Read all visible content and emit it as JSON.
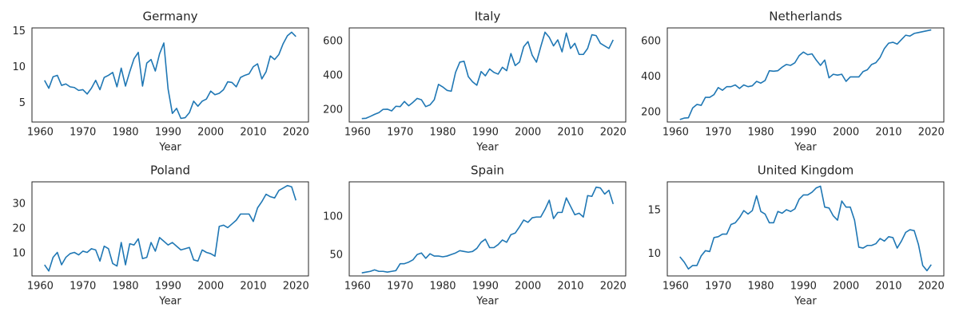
{
  "chart_data": [
    {
      "type": "line",
      "title": "Germany",
      "xlabel": "Year",
      "color": "#1f77b4",
      "x": [
        1961,
        1962,
        1963,
        1964,
        1965,
        1966,
        1967,
        1968,
        1969,
        1970,
        1971,
        1972,
        1973,
        1974,
        1975,
        1976,
        1977,
        1978,
        1979,
        1980,
        1981,
        1982,
        1983,
        1984,
        1985,
        1986,
        1987,
        1988,
        1989,
        1990,
        1991,
        1992,
        1993,
        1994,
        1995,
        1996,
        1997,
        1998,
        1999,
        2000,
        2001,
        2002,
        2003,
        2004,
        2005,
        2006,
        2007,
        2008,
        2009,
        2010,
        2011,
        2012,
        2013,
        2014,
        2015,
        2016,
        2017,
        2018,
        2019,
        2020
      ],
      "values": [
        8.2,
        7.1,
        8.7,
        8.9,
        7.5,
        7.7,
        7.3,
        7.2,
        6.8,
        6.9,
        6.3,
        7.1,
        8.2,
        6.9,
        8.6,
        8.9,
        9.3,
        7.3,
        9.9,
        7.4,
        9.4,
        11.2,
        12.1,
        7.4,
        10.6,
        11.1,
        9.5,
        11.9,
        13.4,
        7.0,
        3.6,
        4.3,
        2.9,
        3.0,
        3.7,
        5.3,
        4.6,
        5.3,
        5.6,
        6.7,
        6.2,
        6.4,
        6.9,
        8.0,
        7.9,
        7.3,
        8.6,
        8.9,
        9.1,
        10.1,
        10.5,
        8.4,
        9.4,
        11.6,
        11.1,
        11.8,
        13.3,
        14.4,
        14.9,
        14.3
      ],
      "xlim": [
        1958.05,
        2022.95
      ],
      "xticks": [
        1960,
        1970,
        1980,
        1990,
        2000,
        2010,
        2020
      ],
      "ylim": [
        2.4,
        15.5
      ],
      "yticks": [
        5,
        10,
        15
      ]
    },
    {
      "type": "line",
      "title": "Italy",
      "xlabel": "Year",
      "color": "#1f77b4",
      "x": [
        1961,
        1962,
        1963,
        1964,
        1965,
        1966,
        1967,
        1968,
        1969,
        1970,
        1971,
        1972,
        1973,
        1974,
        1975,
        1976,
        1977,
        1978,
        1979,
        1980,
        1981,
        1982,
        1983,
        1984,
        1985,
        1986,
        1987,
        1988,
        1989,
        1990,
        1991,
        1992,
        1993,
        1994,
        1995,
        1996,
        1997,
        1998,
        1999,
        2000,
        2001,
        2002,
        2003,
        2004,
        2005,
        2006,
        2007,
        2008,
        2009,
        2010,
        2011,
        2012,
        2013,
        2014,
        2015,
        2016,
        2017,
        2018,
        2019,
        2020
      ],
      "values": [
        150,
        152,
        163,
        175,
        185,
        204,
        205,
        195,
        222,
        220,
        250,
        225,
        245,
        268,
        260,
        220,
        230,
        260,
        350,
        335,
        315,
        310,
        420,
        480,
        485,
        395,
        365,
        345,
        425,
        400,
        440,
        420,
        410,
        450,
        430,
        530,
        460,
        480,
        570,
        600,
        520,
        480,
        570,
        655,
        625,
        575,
        610,
        540,
        650,
        560,
        590,
        525,
        525,
        560,
        640,
        635,
        590,
        575,
        560,
        610
      ],
      "xlim": [
        1958.05,
        2022.95
      ],
      "xticks": [
        1960,
        1970,
        1980,
        1990,
        2000,
        2010,
        2020
      ],
      "ylim": [
        130,
        680
      ],
      "yticks": [
        200,
        400,
        600
      ]
    },
    {
      "type": "line",
      "title": "Netherlands",
      "xlabel": "Year",
      "color": "#1f77b4",
      "x": [
        1961,
        1962,
        1963,
        1964,
        1965,
        1966,
        1967,
        1968,
        1969,
        1970,
        1971,
        1972,
        1973,
        1974,
        1975,
        1976,
        1977,
        1978,
        1979,
        1980,
        1981,
        1982,
        1983,
        1984,
        1985,
        1986,
        1987,
        1988,
        1989,
        1990,
        1991,
        1992,
        1993,
        1994,
        1995,
        1996,
        1997,
        1998,
        1999,
        2000,
        2001,
        2002,
        2003,
        2004,
        2005,
        2006,
        2007,
        2008,
        2009,
        2010,
        2011,
        2012,
        2013,
        2014,
        2015,
        2016,
        2017,
        2018,
        2019,
        2020
      ],
      "values": [
        160,
        168,
        170,
        225,
        245,
        240,
        285,
        285,
        300,
        340,
        325,
        345,
        345,
        355,
        335,
        355,
        345,
        350,
        375,
        365,
        380,
        435,
        432,
        435,
        455,
        470,
        465,
        480,
        520,
        540,
        525,
        530,
        495,
        465,
        495,
        395,
        415,
        410,
        415,
        375,
        400,
        400,
        400,
        430,
        440,
        470,
        480,
        510,
        560,
        590,
        595,
        585,
        610,
        635,
        630,
        645,
        650,
        655,
        660,
        665
      ],
      "xlim": [
        1958.05,
        2022.95
      ],
      "xticks": [
        1960,
        1970,
        1980,
        1990,
        2000,
        2010,
        2020
      ],
      "ylim": [
        146,
        676
      ],
      "yticks": [
        200,
        400,
        600
      ]
    },
    {
      "type": "line",
      "title": "Poland",
      "xlabel": "Year",
      "color": "#1f77b4",
      "x": [
        1961,
        1962,
        1963,
        1964,
        1965,
        1966,
        1967,
        1968,
        1969,
        1970,
        1971,
        1972,
        1973,
        1974,
        1975,
        1976,
        1977,
        1978,
        1979,
        1980,
        1981,
        1982,
        1983,
        1984,
        1985,
        1986,
        1987,
        1988,
        1989,
        1990,
        1991,
        1992,
        1993,
        1994,
        1995,
        1996,
        1997,
        1998,
        1999,
        2000,
        2001,
        2002,
        2003,
        2004,
        2005,
        2006,
        2007,
        2008,
        2009,
        2010,
        2011,
        2012,
        2013,
        2014,
        2015,
        2016,
        2017,
        2018,
        2019,
        2020
      ],
      "values": [
        5.5,
        3.0,
        8.5,
        10.5,
        5.5,
        8.5,
        10,
        10.5,
        9.5,
        11,
        10.5,
        12,
        11.5,
        7,
        13,
        12,
        6,
        5,
        14.5,
        5.5,
        14,
        13.5,
        16,
        8,
        8.5,
        14.5,
        11,
        16.5,
        15,
        13.5,
        14.5,
        13,
        11.5,
        12,
        12.5,
        7.5,
        7,
        11.5,
        10.5,
        10,
        9,
        21,
        21.5,
        20.5,
        22,
        23.5,
        26,
        26,
        26,
        23,
        28.5,
        31,
        34,
        33,
        32.5,
        35.5,
        36.5,
        37.5,
        37,
        31.5
      ],
      "xlim": [
        1958.05,
        2022.95
      ],
      "xticks": [
        1960,
        1970,
        1980,
        1990,
        2000,
        2010,
        2020
      ],
      "ylim": [
        1,
        39
      ],
      "yticks": [
        10,
        20,
        30
      ]
    },
    {
      "type": "line",
      "title": "Spain",
      "xlabel": "Year",
      "color": "#1f77b4",
      "x": [
        1961,
        1962,
        1963,
        1964,
        1965,
        1966,
        1967,
        1968,
        1969,
        1970,
        1971,
        1972,
        1973,
        1974,
        1975,
        1976,
        1977,
        1978,
        1979,
        1980,
        1981,
        1982,
        1983,
        1984,
        1985,
        1986,
        1987,
        1988,
        1989,
        1990,
        1991,
        1992,
        1993,
        1994,
        1995,
        1996,
        1997,
        1998,
        1999,
        2000,
        2001,
        2002,
        2003,
        2004,
        2005,
        2006,
        2007,
        2008,
        2009,
        2010,
        2011,
        2012,
        2013,
        2014,
        2015,
        2016,
        2017,
        2018,
        2019,
        2020
      ],
      "values": [
        27,
        28,
        29,
        31,
        29,
        29,
        28,
        29,
        30,
        39,
        39,
        41,
        44,
        51,
        53,
        46,
        52,
        49,
        49,
        48,
        49,
        51,
        53,
        56,
        55,
        54,
        55,
        59,
        67,
        71,
        60,
        60,
        64,
        70,
        67,
        77,
        79,
        87,
        96,
        93,
        99,
        100,
        100,
        110,
        122,
        98,
        106,
        106,
        125,
        114,
        103,
        105,
        100,
        128,
        127,
        139,
        138,
        130,
        135,
        117
      ],
      "xlim": [
        1958.05,
        2022.95
      ],
      "xticks": [
        1960,
        1970,
        1980,
        1990,
        2000,
        2010,
        2020
      ],
      "ylim": [
        23,
        146
      ],
      "yticks": [
        50,
        100
      ]
    },
    {
      "type": "line",
      "title": "United Kingdom",
      "xlabel": "Year",
      "color": "#1f77b4",
      "x": [
        1961,
        1962,
        1963,
        1964,
        1965,
        1966,
        1967,
        1968,
        1969,
        1970,
        1971,
        1972,
        1973,
        1974,
        1975,
        1976,
        1977,
        1978,
        1979,
        1980,
        1981,
        1982,
        1983,
        1984,
        1985,
        1986,
        1987,
        1988,
        1989,
        1990,
        1991,
        1992,
        1993,
        1994,
        1995,
        1996,
        1997,
        1998,
        1999,
        2000,
        2001,
        2002,
        2003,
        2004,
        2005,
        2006,
        2007,
        2008,
        2009,
        2010,
        2011,
        2012,
        2013,
        2014,
        2015,
        2016,
        2017,
        2018,
        2019,
        2020
      ],
      "values": [
        9.7,
        9.1,
        8.3,
        8.7,
        8.7,
        9.8,
        10.4,
        10.3,
        11.9,
        12.0,
        12.3,
        12.3,
        13.4,
        13.6,
        14.2,
        15.0,
        14.6,
        15.0,
        16.7,
        14.9,
        14.6,
        13.6,
        13.6,
        14.9,
        14.7,
        15.1,
        14.9,
        15.2,
        16.3,
        16.8,
        16.8,
        17.1,
        17.6,
        17.8,
        15.4,
        15.3,
        14.4,
        13.9,
        16.1,
        15.4,
        15.4,
        13.9,
        10.8,
        10.7,
        11.0,
        11.0,
        11.2,
        11.8,
        11.5,
        12.0,
        11.9,
        10.7,
        11.5,
        12.5,
        12.8,
        12.7,
        11.1,
        8.7,
        8.1,
        8.8
      ],
      "xlim": [
        1958.05,
        2022.95
      ],
      "xticks": [
        1960,
        1970,
        1980,
        1990,
        2000,
        2010,
        2020
      ],
      "ylim": [
        7.5,
        18.3
      ],
      "yticks": [
        10,
        15
      ]
    }
  ]
}
